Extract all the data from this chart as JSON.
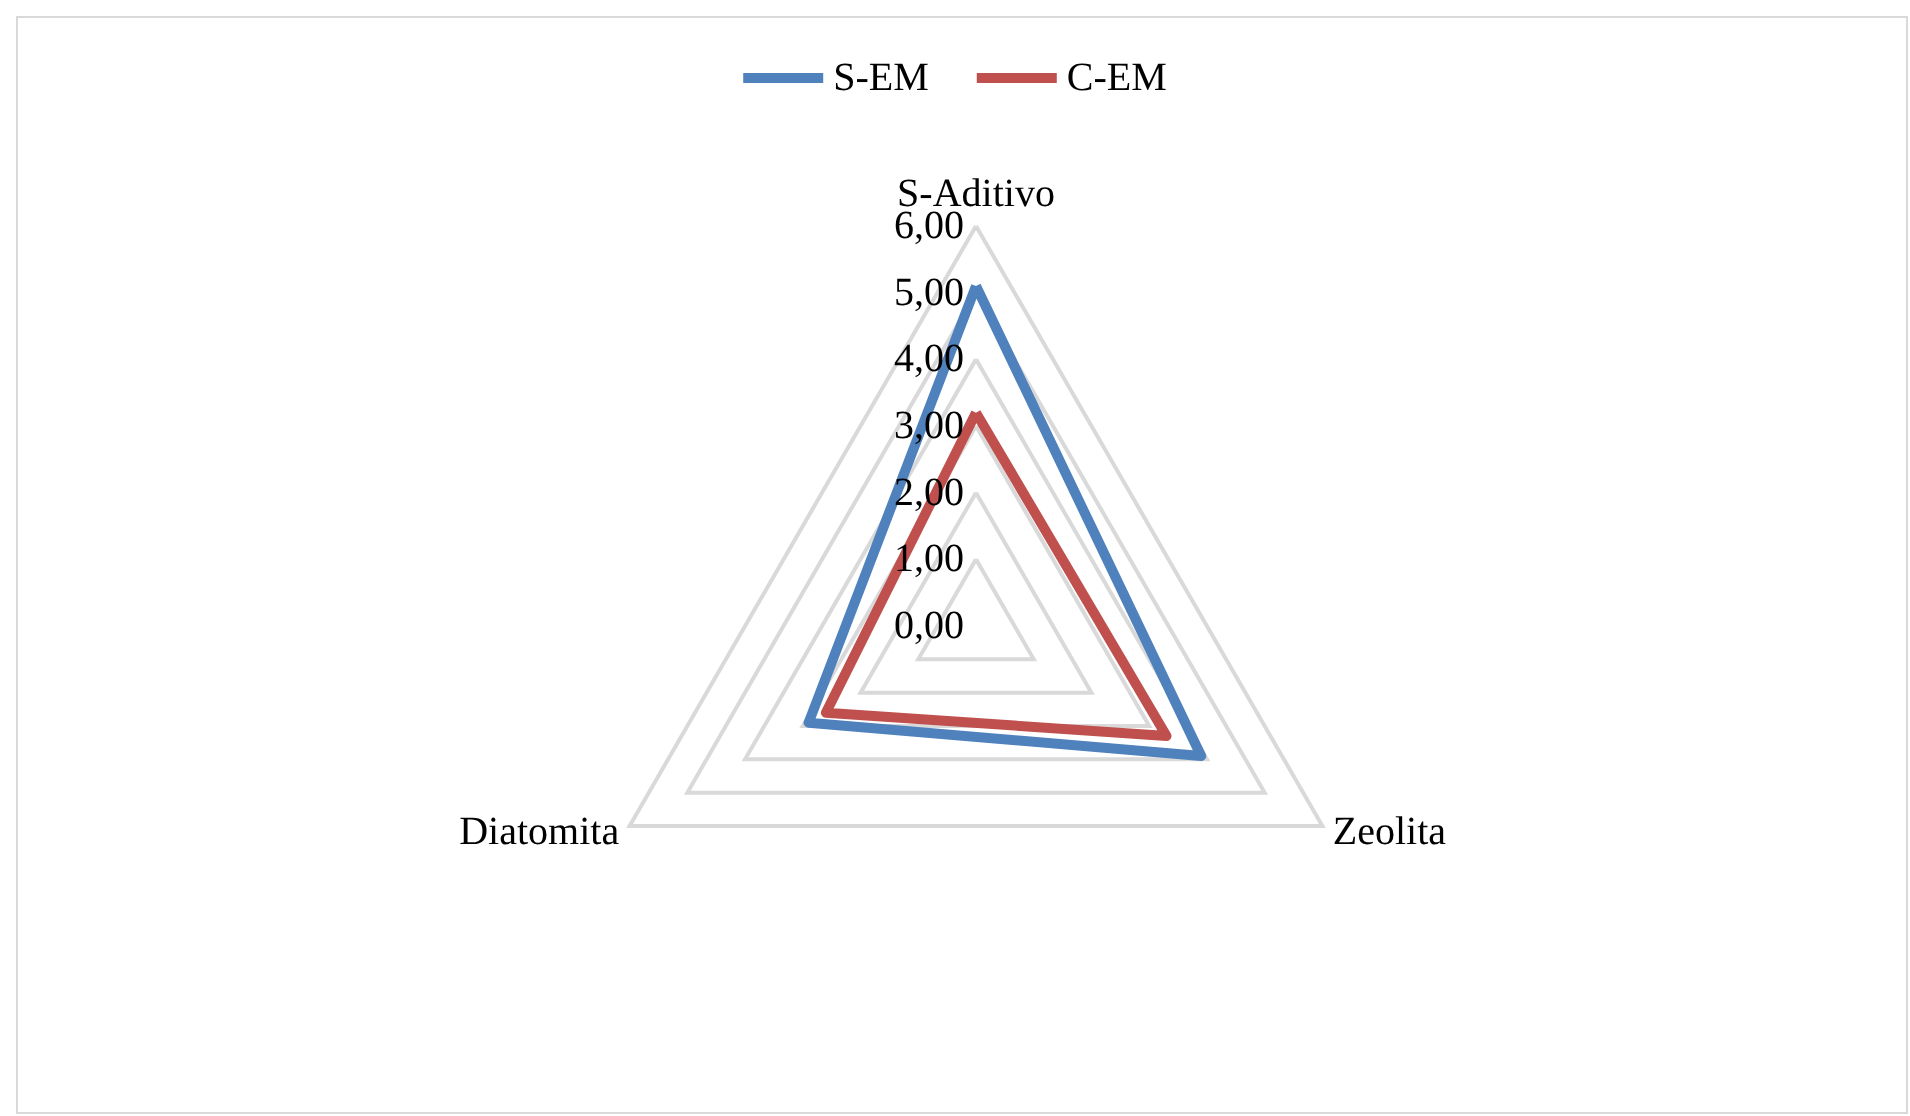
{
  "chart_data": {
    "type": "radar",
    "categories": [
      "S-Aditivo",
      "Zeolita",
      "Diatomita"
    ],
    "series": [
      {
        "name": "S-EM",
        "color": "#4f81bd",
        "values": [
          5.1,
          3.9,
          2.9
        ]
      },
      {
        "name": "C-EM",
        "color": "#c0504d",
        "values": [
          3.2,
          3.3,
          2.6
        ]
      }
    ],
    "ylim": [
      0,
      6
    ],
    "yticks": [
      {
        "value": 0,
        "label": "0,00"
      },
      {
        "value": 1,
        "label": "1,00"
      },
      {
        "value": 2,
        "label": "2,00"
      },
      {
        "value": 3,
        "label": "3,00"
      },
      {
        "value": 4,
        "label": "4,00"
      },
      {
        "value": 5,
        "label": "5,00"
      },
      {
        "value": 6,
        "label": "6,00"
      }
    ],
    "grid": true,
    "legend": "top",
    "marker": "none",
    "line_style": "solid"
  }
}
